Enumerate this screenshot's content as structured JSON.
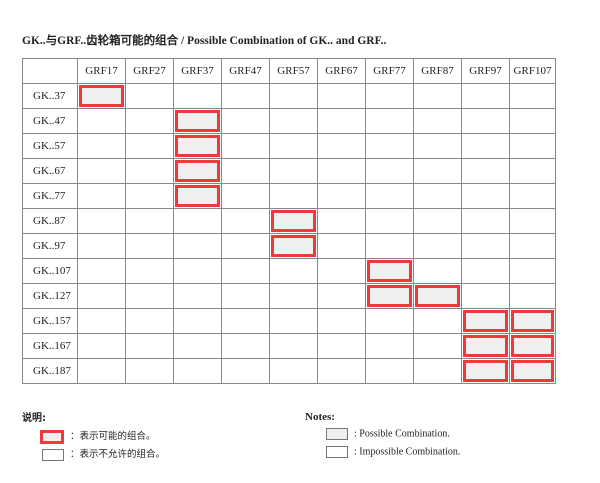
{
  "title": "GK..与GRF..齿轮箱可能的组合 / Possible Combination of GK.. and GRF..",
  "columns": [
    "GRF17",
    "GRF27",
    "GRF37",
    "GRF47",
    "GRF57",
    "GRF67",
    "GRF77",
    "GRF87",
    "GRF97",
    "GRF107"
  ],
  "rows": [
    {
      "label": "GK..37",
      "possible": [
        "GRF17"
      ]
    },
    {
      "label": "GK..47",
      "possible": [
        "GRF37"
      ]
    },
    {
      "label": "GK..57",
      "possible": [
        "GRF37"
      ]
    },
    {
      "label": "GK..67",
      "possible": [
        "GRF37"
      ]
    },
    {
      "label": "GK..77",
      "possible": [
        "GRF37"
      ]
    },
    {
      "label": "GK..87",
      "possible": [
        "GRF57"
      ]
    },
    {
      "label": "GK..97",
      "possible": [
        "GRF57"
      ]
    },
    {
      "label": "GK..107",
      "possible": [
        "GRF77"
      ]
    },
    {
      "label": "GK..127",
      "possible": [
        "GRF77",
        "GRF87"
      ]
    },
    {
      "label": "GK..157",
      "possible": [
        "GRF97",
        "GRF107"
      ]
    },
    {
      "label": "GK..167",
      "possible": [
        "GRF97",
        "GRF107"
      ]
    },
    {
      "label": "GK..187",
      "possible": [
        "GRF97",
        "GRF107"
      ]
    }
  ],
  "legend_cn": {
    "heading": "说明:",
    "possible": "：表示可能的组合。",
    "impossible": "：表示不允许的组合。"
  },
  "legend_en": {
    "heading": "Notes:",
    "possible": ": Possible Combination.",
    "impossible": ": Impossible Combination."
  },
  "colors": {
    "highlight": "#f03a3a",
    "fill": "#eef0ef"
  }
}
